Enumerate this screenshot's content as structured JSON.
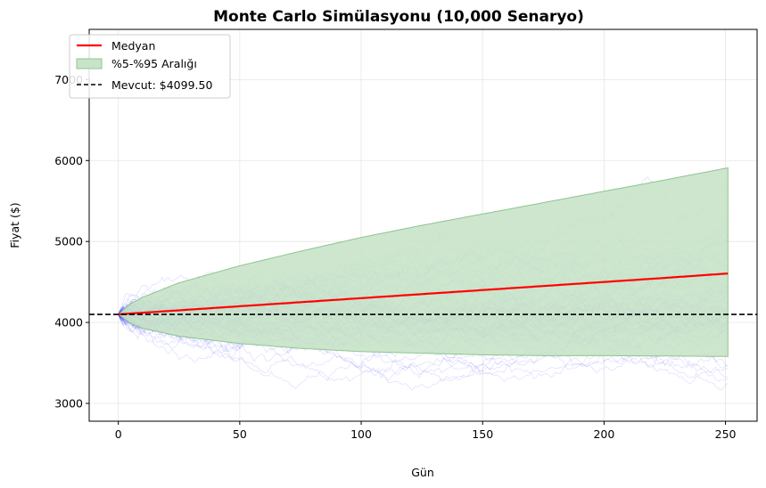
{
  "chart_data": {
    "type": "line",
    "title": "Monte Carlo Simülasyonu (10,000 Senaryo)",
    "xlabel": "Gün",
    "ylabel": "Fiyat ($)",
    "xlim": [
      -12,
      263
    ],
    "ylim": [
      2780,
      7620
    ],
    "xticks": [
      0,
      50,
      100,
      150,
      200,
      250
    ],
    "yticks": [
      3000,
      4000,
      5000,
      6000,
      7000
    ],
    "grid": true,
    "legend_position": "top-left",
    "current_price": 4099.5,
    "colors": {
      "median": "#ff0000",
      "band_fill": "#c8e3c8",
      "band_edge": "#8fc48f",
      "paths": "#0000ff",
      "current_line": "#000000"
    },
    "legend": [
      {
        "label": "Medyan",
        "style": "line",
        "color": "#ff0000"
      },
      {
        "label": "%5-%95 Aralığı",
        "style": "patch",
        "color": "#c8e3c8"
      },
      {
        "label": "Mevcut: $4099.50",
        "style": "dashed",
        "color": "#000000"
      }
    ],
    "series": [
      {
        "name": "Medyan",
        "x": [
          0,
          25,
          50,
          75,
          100,
          125,
          150,
          175,
          200,
          225,
          251
        ],
        "y": [
          4100,
          4150,
          4200,
          4250,
          4300,
          4350,
          4400,
          4450,
          4500,
          4550,
          4605
        ]
      },
      {
        "name": "%5-%95 Aralığı",
        "x": [
          0,
          5,
          10,
          25,
          50,
          75,
          100,
          125,
          150,
          175,
          200,
          225,
          251
        ],
        "lower": [
          4100,
          3990,
          3930,
          3830,
          3740,
          3680,
          3640,
          3620,
          3600,
          3590,
          3590,
          3585,
          3580
        ],
        "upper": [
          4100,
          4230,
          4310,
          4490,
          4700,
          4880,
          5050,
          5200,
          5340,
          5480,
          5620,
          5760,
          5910
        ]
      }
    ],
    "paths_count_shown": 100
  }
}
